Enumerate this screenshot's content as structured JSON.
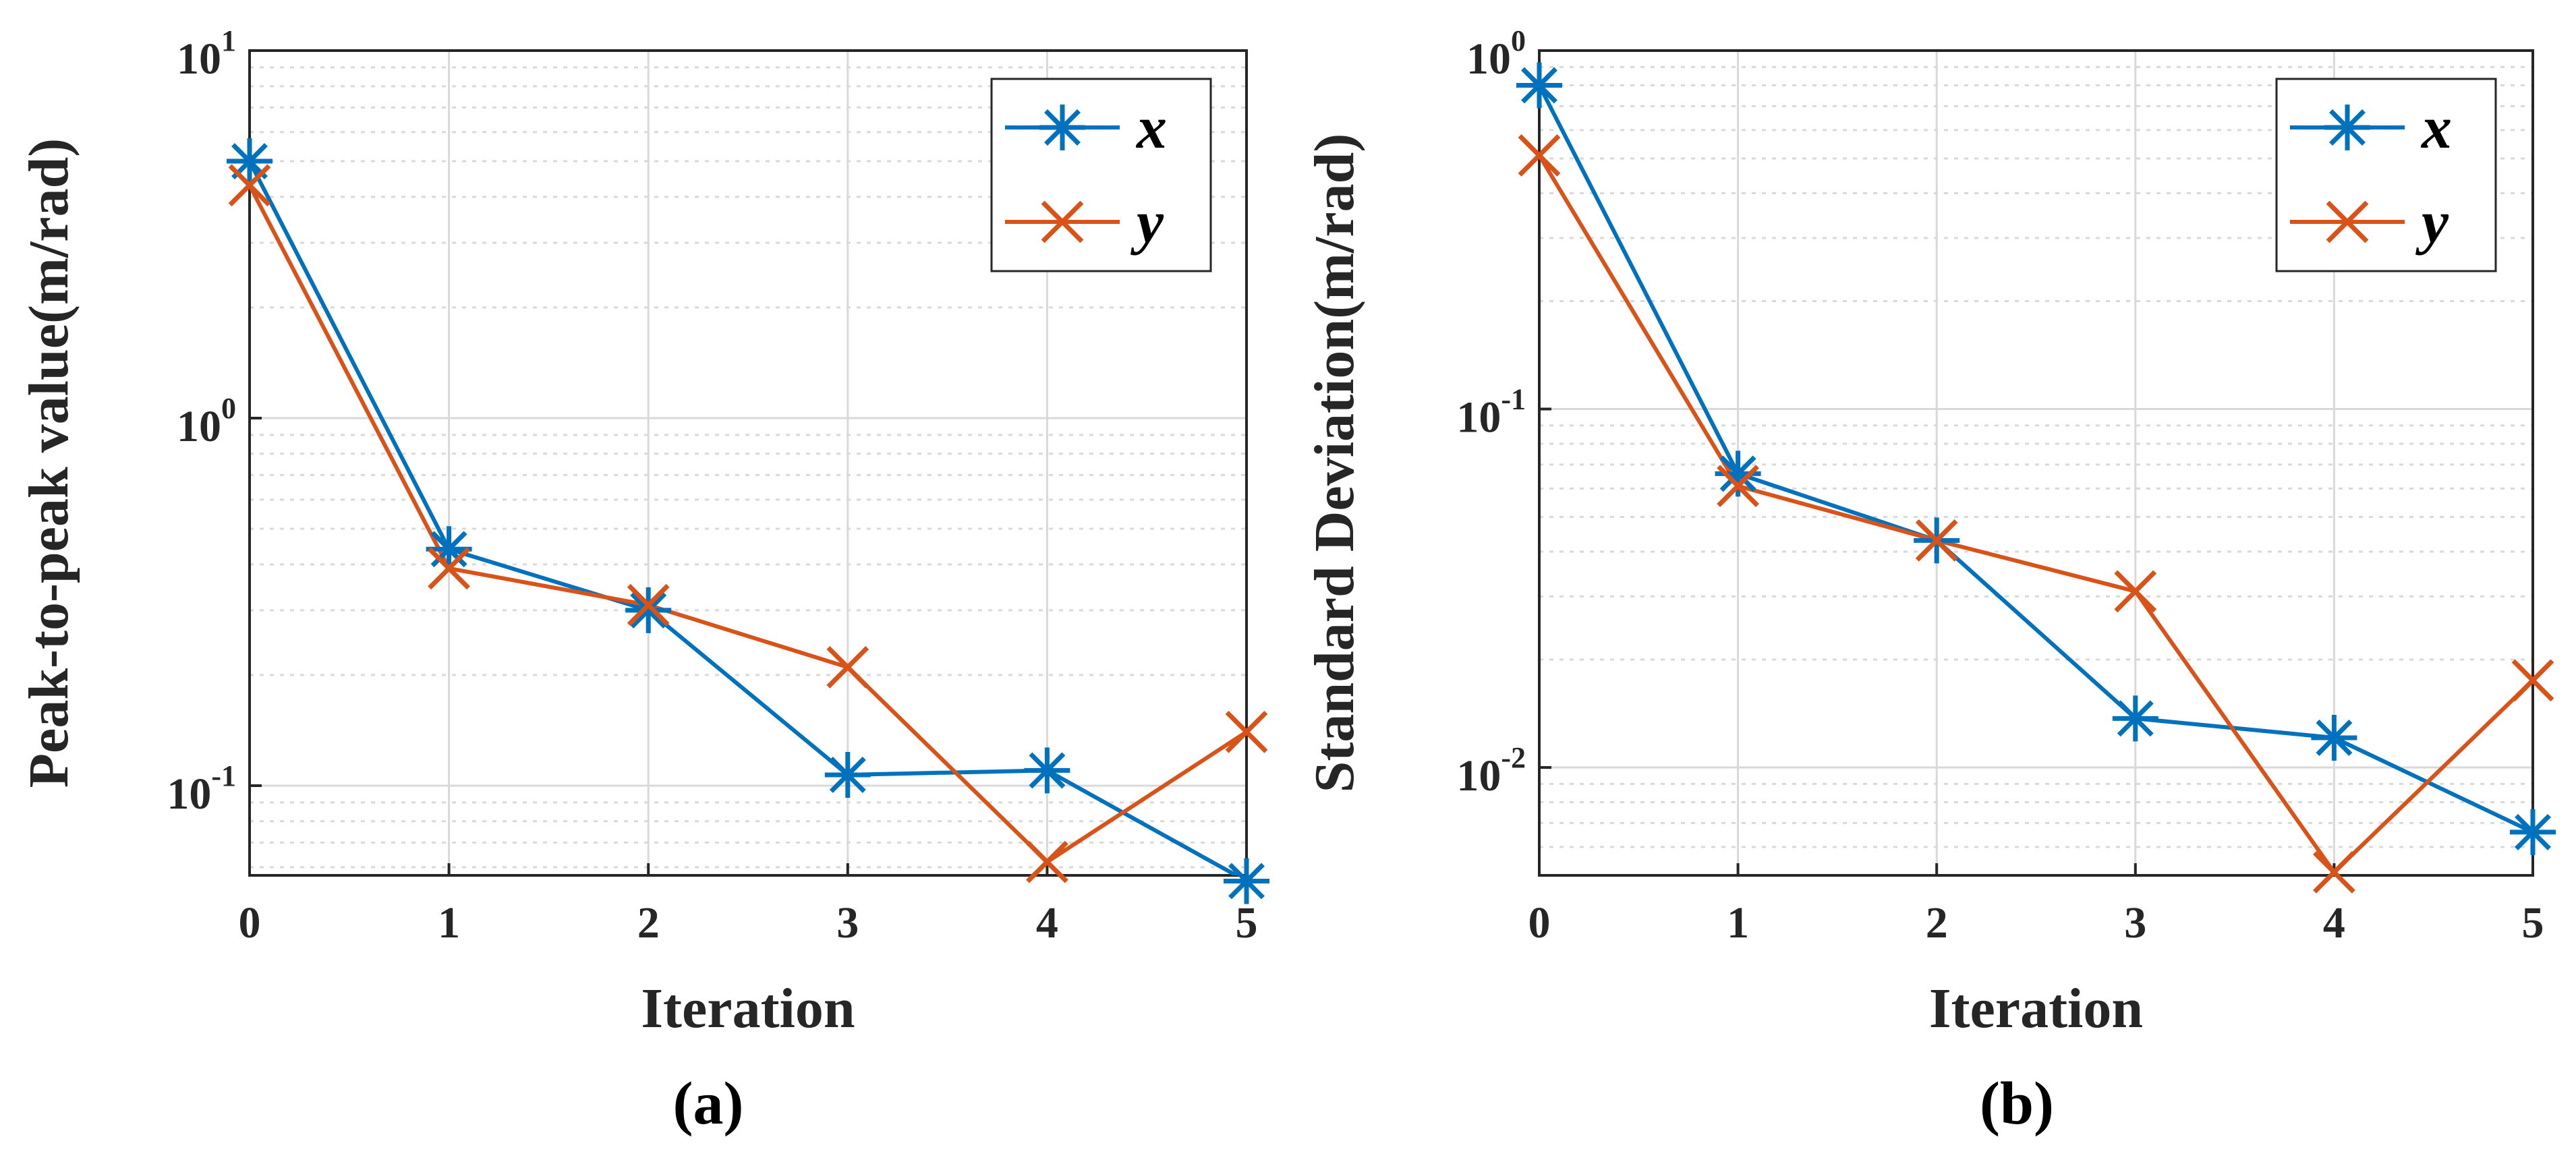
{
  "colors": {
    "x": "#0072BD",
    "y": "#D95319",
    "axis": "#262626",
    "grid": "#d9d9d9"
  },
  "chart_data": [
    {
      "type": "line",
      "panel_label": "(a)",
      "xlabel": "Iteration",
      "ylabel": "Peak-to-peak value(m/rad)",
      "yscale": "log",
      "x": [
        0,
        1,
        2,
        3,
        4,
        5
      ],
      "xlim": [
        0,
        5
      ],
      "ylim": [
        0.057,
        10
      ],
      "xticks": [
        "0",
        "1",
        "2",
        "3",
        "4",
        "5"
      ],
      "yticks": [
        {
          "value": 10,
          "base": "10",
          "exp": "1"
        },
        {
          "value": 1,
          "base": "10",
          "exp": "0"
        },
        {
          "value": 0.1,
          "base": "10",
          "exp": "-1"
        }
      ],
      "grid": true,
      "legend_position": "top-right",
      "series": [
        {
          "name": "x",
          "marker": "asterisk",
          "values": [
            5.0,
            0.44,
            0.3,
            0.107,
            0.11,
            0.055
          ]
        },
        {
          "name": "y",
          "marker": "cross",
          "values": [
            4.3,
            0.39,
            0.31,
            0.21,
            0.062,
            0.14
          ]
        }
      ]
    },
    {
      "type": "line",
      "panel_label": "(b)",
      "xlabel": "Iteration",
      "ylabel": "Standard Deviation(m/rad)",
      "yscale": "log",
      "x": [
        0,
        1,
        2,
        3,
        4,
        5
      ],
      "xlim": [
        0,
        5
      ],
      "ylim": [
        0.005,
        1
      ],
      "xticks": [
        "0",
        "1",
        "2",
        "3",
        "4",
        "5"
      ],
      "yticks": [
        {
          "value": 1,
          "base": "10",
          "exp": "0"
        },
        {
          "value": 0.1,
          "base": "10",
          "exp": "-1"
        },
        {
          "value": 0.01,
          "base": "10",
          "exp": "-2"
        }
      ],
      "grid": true,
      "legend_position": "top-right",
      "series": [
        {
          "name": "x",
          "marker": "asterisk",
          "values": [
            0.8,
            0.066,
            0.043,
            0.0137,
            0.0121,
            0.0066
          ]
        },
        {
          "name": "y",
          "marker": "cross",
          "values": [
            0.51,
            0.061,
            0.043,
            0.031,
            0.0051,
            0.0175
          ]
        }
      ]
    }
  ]
}
